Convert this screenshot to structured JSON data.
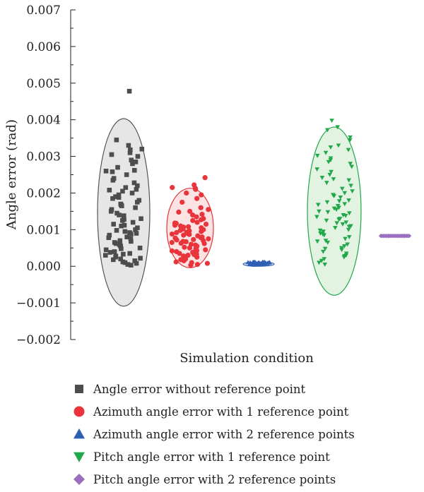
{
  "chart_data": {
    "type": "scatter",
    "title": "",
    "xlabel": "Simulation condition",
    "ylabel": "Angle error (rad)",
    "ylim": [
      -0.002,
      0.007
    ],
    "yticks": [
      "0.007",
      "0.006",
      "0.005",
      "0.004",
      "0.003",
      "0.002",
      "0.001",
      "0.000",
      "−0.001",
      "−0.002"
    ],
    "ytick_values": [
      0.007,
      0.006,
      0.005,
      0.004,
      0.003,
      0.002,
      0.001,
      0.0,
      -0.001,
      -0.002
    ],
    "grid": false,
    "legend_position": "bottom",
    "series": [
      {
        "name": "Angle error without reference point",
        "marker": "square",
        "color": "#4d4d4d",
        "ellipse": {
          "center": 0.00148,
          "low": -0.00109,
          "high": 0.00403,
          "fill": "#e6e6e6",
          "stroke": "#555555"
        },
        "values": [
          0.00478,
          0.00345,
          0.0033,
          0.0032,
          0.00318,
          0.0031,
          0.00305,
          0.003,
          0.0029,
          0.00285,
          0.0028,
          0.0027,
          0.00262,
          0.00258,
          0.0025,
          0.0024,
          0.00235,
          0.00228,
          0.0022,
          0.0021,
          0.00208,
          0.00205,
          0.002,
          0.00195,
          0.0019,
          0.00188,
          0.0018,
          0.00175,
          0.0017,
          0.00168,
          0.0016,
          0.00155,
          0.0015,
          0.00145,
          0.0014,
          0.00138,
          0.0013,
          0.00125,
          0.0012,
          0.00115,
          0.0011,
          0.00105,
          0.001,
          0.00098,
          0.00095,
          0.0009,
          0.00088,
          0.00085,
          0.0008,
          0.00078,
          0.00075,
          0.0007,
          0.00068,
          0.00065,
          0.0006,
          0.00058,
          0.00055,
          0.0005,
          0.00048,
          0.00045,
          0.0004,
          0.00038,
          0.00035,
          0.0003,
          0.00028,
          0.00025,
          0.0002,
          0.00018,
          0.00015,
          0.00012,
          0.0001,
          8e-05,
          5e-05,
          3e-05,
          0.0026,
          0.00215,
          0.00165,
          0.00128,
          0.00092,
          0.00062,
          0.00033,
          0.00022,
          0.00185,
          0.00112
        ]
      },
      {
        "name": "Azimuth angle error with 1 reference point",
        "marker": "circle",
        "color": "#e8343a",
        "ellipse": {
          "center": 0.00078,
          "low": -4e-05,
          "high": 0.00213,
          "fill": "#fbe3e4",
          "stroke": "#e8343a"
        },
        "values": [
          0.00242,
          0.00222,
          0.00215,
          0.00213,
          0.0021,
          0.002,
          0.00195,
          0.00185,
          0.00175,
          0.0016,
          0.00155,
          0.0015,
          0.00148,
          0.0014,
          0.00135,
          0.0013,
          0.00125,
          0.0012,
          0.00118,
          0.00115,
          0.00112,
          0.0011,
          0.00108,
          0.00105,
          0.00102,
          0.001,
          0.00098,
          0.00095,
          0.00093,
          0.0009,
          0.00088,
          0.00085,
          0.00083,
          0.0008,
          0.00078,
          0.00075,
          0.00073,
          0.0007,
          0.00068,
          0.00065,
          0.00063,
          0.0006,
          0.00058,
          0.00055,
          0.00053,
          0.0005,
          0.00048,
          0.00045,
          0.00043,
          0.0004,
          0.00038,
          0.00035,
          0.00033,
          0.0003,
          0.00028,
          0.00025,
          0.00022,
          0.0002,
          0.00018,
          0.00015,
          0.00012,
          0.0001,
          8e-05,
          5e-05,
          3e-05,
          0.00142,
          0.00127,
          0.00107,
          0.00097,
          0.00087,
          0.00072,
          0.00062,
          0.00052,
          0.00042,
          0.00032,
          0.00067,
          0.00077,
          0.00092,
          0.00117
        ]
      },
      {
        "name": "Azimuth angle error with 2 reference points",
        "marker": "triangle-up",
        "color": "#2f5fb3",
        "ellipse": {
          "center": 6e-05,
          "low": 1e-05,
          "high": 0.00011,
          "fill": "#dfe8f6",
          "stroke": "#2f5fb3"
        },
        "values": [
          0.0001,
          0.00012,
          8e-05,
          9e-05,
          0.00011,
          7e-05,
          6e-05,
          0.0001,
          0.00012,
          5e-05,
          8e-05,
          9e-05,
          0.00011,
          7e-05,
          4e-05,
          6e-05,
          0.0001,
          0.00012,
          8e-05,
          5e-05,
          9e-05,
          0.00011,
          7e-05,
          6e-05,
          0.0001,
          8e-05,
          0.00012,
          5e-05,
          9e-05,
          7e-05,
          0.00011,
          6e-05,
          0.0001,
          8e-05,
          4e-05,
          0.00012,
          9e-05,
          7e-05,
          0.00011,
          5e-05
        ]
      },
      {
        "name": "Pitch angle error with 1 reference point",
        "marker": "triangle-down",
        "color": "#22a84a",
        "ellipse": {
          "center": 0.0015,
          "low": -0.00079,
          "high": 0.0038,
          "fill": "#e3f3e2",
          "stroke": "#22a84a"
        },
        "values": [
          0.00398,
          0.0038,
          0.00372,
          0.00352,
          0.00345,
          0.0033,
          0.00325,
          0.00318,
          0.0031,
          0.00302,
          0.00295,
          0.0029,
          0.0028,
          0.00272,
          0.00265,
          0.00258,
          0.0025,
          0.00242,
          0.00235,
          0.00228,
          0.0022,
          0.00212,
          0.00205,
          0.002,
          0.00195,
          0.00188,
          0.0018,
          0.00175,
          0.0017,
          0.00165,
          0.0016,
          0.00155,
          0.0015,
          0.00145,
          0.0014,
          0.00135,
          0.0013,
          0.00125,
          0.0012,
          0.00115,
          0.0011,
          0.00105,
          0.001,
          0.00095,
          0.0009,
          0.00085,
          0.0008,
          0.00075,
          0.0007,
          0.00065,
          0.0006,
          0.00055,
          0.0005,
          0.00045,
          0.0004,
          0.00035,
          0.0003,
          0.00025,
          0.0002,
          0.00015,
          0.0001,
          5e-05,
          0.00285,
          0.00238,
          0.00192,
          0.00168,
          0.00148,
          0.00128,
          0.00108,
          0.00088,
          0.00068,
          0.00048,
          0.00028,
          0.00158,
          0.00178,
          0.00118,
          0.00098,
          0.00138
        ]
      },
      {
        "name": "Pitch angle error with 2 reference points",
        "marker": "diamond",
        "color": "#9b6fc0",
        "ellipse": null,
        "values": [
          0.00083,
          0.00083,
          0.00083,
          0.00083,
          0.00083,
          0.00083,
          0.00083,
          0.00083,
          0.00083,
          0.00083,
          0.00083,
          0.00083,
          0.00083,
          0.00083,
          0.00083,
          0.00083,
          0.00083,
          0.00083,
          0.00083,
          0.00083
        ]
      }
    ]
  }
}
